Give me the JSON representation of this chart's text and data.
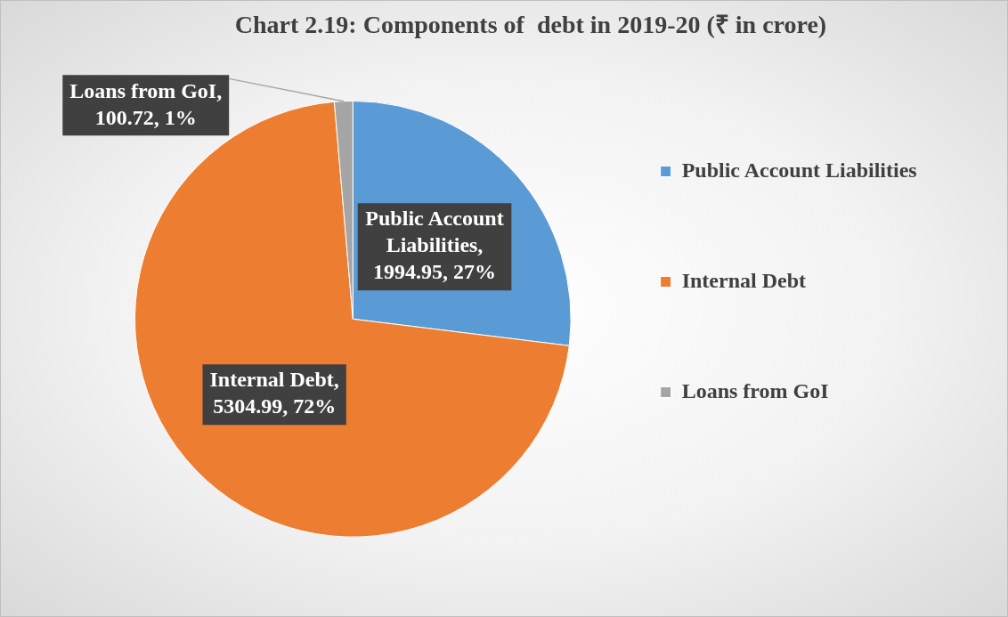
{
  "chart_data": {
    "type": "pie",
    "title": "Chart 2.19: Components of  debt in 2019-20 (₹ in crore)",
    "categories": [
      "Public Account Liabilities",
      "Internal Debt",
      "Loans from GoI"
    ],
    "values": [
      1994.95,
      5304.99,
      100.72
    ],
    "colors": [
      "#5b9bd5",
      "#ed7d31",
      "#a5a5a5"
    ],
    "value_labels": [
      "Public Account Liabilities, 1994.95, 27%",
      "Internal Debt, 5304.99, 72%",
      "Loans from GoI, 100.72, 1%"
    ],
    "legend": "right"
  }
}
